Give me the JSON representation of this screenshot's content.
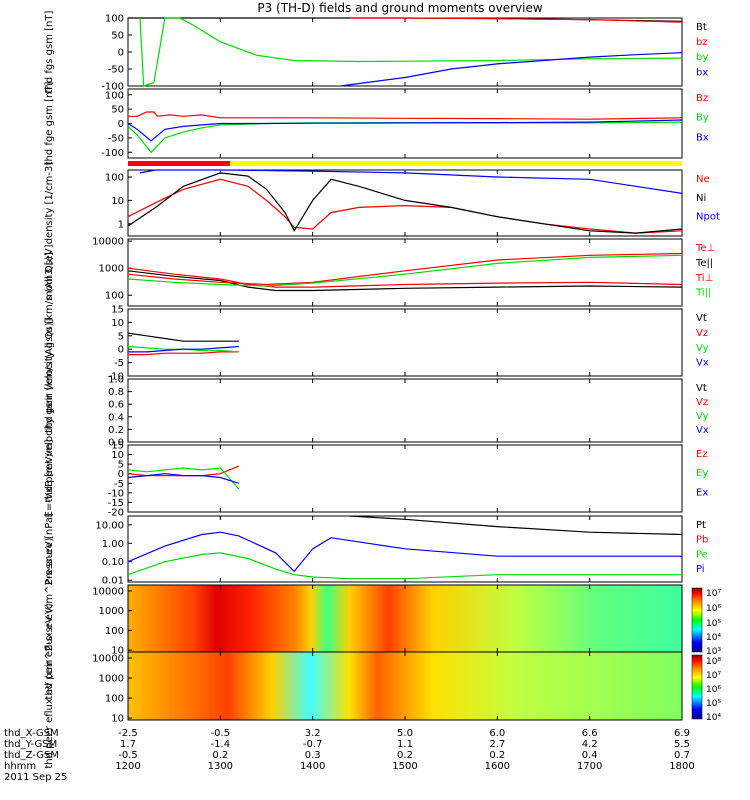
{
  "title": "P3 (TH-D) fields and ground moments overview",
  "date_label": "2011 Sep 25",
  "colors": {
    "black": "#000000",
    "red": "#ff0000",
    "green": "#00dd00",
    "blue": "#0000ff",
    "yellow": "#ffff00",
    "colorbar": [
      "#000080",
      "#0000ff",
      "#00ffff",
      "#00ff00",
      "#ffff00",
      "#ff8000",
      "#ff0000",
      "#800000"
    ]
  },
  "ephemeris": {
    "rows": [
      {
        "label": "thd_X-GSM",
        "values": [
          "-2.5",
          "-0.5",
          "3.2",
          "5.0",
          "6.0",
          "6.6",
          "6.9"
        ]
      },
      {
        "label": "thd_Y-GSM",
        "values": [
          "1.7",
          "-1.4",
          "-0.7",
          "1.1",
          "2.7",
          "4.2",
          "5.5"
        ]
      },
      {
        "label": "thd_Z-GSM",
        "values": [
          "-0.5",
          "0.2",
          "0.3",
          "0.2",
          "0.2",
          "0.4",
          "0.7"
        ]
      },
      {
        "label": "hhmm",
        "values": [
          "1200",
          "1300",
          "1400",
          "1500",
          "1600",
          "1700",
          "1800"
        ]
      }
    ]
  },
  "chart_data": [
    {
      "type": "line",
      "ylabel": "thd fgs gsm [nT]",
      "ylim": [
        -100,
        100
      ],
      "ticks": [
        "100",
        "50",
        "0",
        "-50",
        "-100"
      ],
      "legend": [
        "Bt",
        "bz",
        "by",
        "bx"
      ],
      "series": [
        {
          "name": "Bt",
          "x": [
            1200,
            1213,
            1228,
            1230,
            1233,
            1256,
            1300,
            1400,
            1500,
            1600,
            1700,
            1800
          ],
          "y": [
            100,
            100,
            100,
            100,
            100,
            100,
            100,
            100,
            100,
            98,
            95,
            90
          ]
        },
        {
          "name": "bz",
          "x": [
            1440,
            1500,
            1600,
            1700,
            1800
          ],
          "y": [
            100,
            100,
            98,
            95,
            88
          ]
        },
        {
          "name": "by",
          "x": [
            1213,
            1217,
            1228,
            1240,
            1256,
            1270,
            1300,
            1340,
            1380,
            1450,
            1500,
            1600,
            1700,
            1800
          ],
          "y": [
            100,
            -100,
            -90,
            100,
            100,
            80,
            30,
            -10,
            -25,
            -28,
            -27,
            -25,
            -20,
            -18
          ]
        },
        {
          "name": "bx",
          "x": [
            1430,
            1500,
            1550,
            1600,
            1650,
            1700,
            1750,
            1800
          ],
          "y": [
            -100,
            -75,
            -50,
            -35,
            -25,
            -15,
            -8,
            -2
          ]
        }
      ]
    },
    {
      "type": "line",
      "ylabel": "thd fge gsm [nT]",
      "ylim": [
        -120,
        120
      ],
      "ticks": [
        "100",
        "50",
        "0",
        "-50",
        "-100"
      ],
      "legend": [
        "Bz",
        "By",
        "Bx"
      ],
      "series": [
        {
          "name": "Bz",
          "x": [
            1200,
            1210,
            1220,
            1228,
            1232,
            1245,
            1260,
            1280,
            1300,
            1350,
            1400,
            1500,
            1600,
            1700,
            1800
          ],
          "y": [
            25,
            25,
            40,
            40,
            25,
            30,
            25,
            30,
            20,
            20,
            20,
            18,
            17,
            15,
            20
          ]
        },
        {
          "name": "By",
          "x": [
            1200,
            1210,
            1225,
            1240,
            1260,
            1280,
            1300,
            1350,
            1400,
            1500,
            1600,
            1700,
            1800
          ],
          "y": [
            -10,
            -40,
            -100,
            -50,
            -30,
            -15,
            -5,
            0,
            2,
            3,
            2,
            2,
            5
          ]
        },
        {
          "name": "Bx",
          "x": [
            1200,
            1210,
            1225,
            1240,
            1260,
            1280,
            1300,
            1350,
            1400,
            1500,
            1600,
            1700,
            1800
          ],
          "y": [
            0,
            -20,
            -60,
            -20,
            -10,
            -5,
            0,
            0,
            1,
            2,
            3,
            5,
            12
          ]
        }
      ]
    },
    {
      "type": "line",
      "ylabel": "density [1/cm-3]",
      "yscale": "log",
      "ylim": [
        0.3,
        200
      ],
      "ticks": [
        "100",
        "10",
        "1"
      ],
      "legend": [
        "Ne",
        "Ni",
        "Npot"
      ],
      "series": [
        {
          "name": "Ne",
          "x": [
            1200,
            1230,
            1260,
            1300,
            1330,
            1350,
            1370,
            1380,
            1400,
            1420,
            1450,
            1500,
            1550,
            1600,
            1650,
            1700,
            1750,
            1800
          ],
          "y": [
            2,
            8,
            30,
            80,
            40,
            10,
            2,
            0.7,
            0.6,
            3,
            5,
            6,
            5,
            2,
            1,
            0.6,
            0.4,
            0.5
          ]
        },
        {
          "name": "Ni",
          "x": [
            1200,
            1230,
            1260,
            1300,
            1330,
            1350,
            1370,
            1380,
            1400,
            1420,
            1450,
            1500,
            1550,
            1600,
            1650,
            1700,
            1750,
            1800
          ],
          "y": [
            0.8,
            5,
            40,
            150,
            110,
            30,
            3,
            0.5,
            10,
            80,
            40,
            10,
            5,
            2,
            1,
            0.5,
            0.4,
            0.6
          ]
        },
        {
          "name": "Npot",
          "x": [
            1213,
            1230,
            1260,
            1300,
            1400,
            1500,
            1600,
            1700,
            1750,
            1800
          ],
          "y": [
            150,
            200,
            200,
            200,
            180,
            150,
            100,
            80,
            40,
            20
          ]
        }
      ]
    },
    {
      "type": "line",
      "ylabel": "mom3 [eV]",
      "yscale": "log",
      "ylim": [
        40,
        12000
      ],
      "ticks": [
        "10000",
        "1000",
        "100"
      ],
      "legend": [
        "Te⊥",
        "Te||",
        "Ti⊥",
        "Ti||"
      ],
      "series": [
        {
          "name": "Te⊥",
          "x": [
            1200,
            1250,
            1300,
            1330,
            1360,
            1400,
            1500,
            1600,
            1700,
            1800
          ],
          "y": [
            1000,
            600,
            400,
            250,
            200,
            200,
            250,
            280,
            300,
            250
          ]
        },
        {
          "name": "Te||",
          "x": [
            1200,
            1250,
            1300,
            1330,
            1360,
            1400,
            1500,
            1600,
            1700,
            1800
          ],
          "y": [
            800,
            500,
            350,
            200,
            150,
            150,
            180,
            200,
            220,
            200
          ]
        },
        {
          "name": "Ti⊥",
          "x": [
            1200,
            1250,
            1300,
            1350,
            1400,
            1500,
            1600,
            1700,
            1800
          ],
          "y": [
            600,
            400,
            300,
            250,
            300,
            800,
            2000,
            3000,
            3500
          ]
        },
        {
          "name": "Ti||",
          "x": [
            1200,
            1250,
            1300,
            1350,
            1400,
            1500,
            1600,
            1700,
            1800
          ],
          "y": [
            400,
            300,
            250,
            220,
            280,
            600,
            1500,
            2500,
            3000
          ]
        }
      ]
    },
    {
      "type": "line",
      "ylabel": "thd peir velocity gsm [km/s (All Qs)]",
      "ylim": [
        -10,
        15
      ],
      "ticks": [
        "15",
        "10",
        "5",
        "0",
        "-5",
        "-10"
      ],
      "legend": [
        "Vt",
        "Vz",
        "Vy",
        "Vx"
      ],
      "series": [
        {
          "name": "Vt",
          "x": [
            1200,
            1220,
            1240,
            1260,
            1280,
            1300,
            1320
          ],
          "y": [
            6,
            5,
            4,
            3,
            3,
            3,
            3
          ]
        },
        {
          "name": "Vz",
          "x": [
            1200,
            1220,
            1240,
            1260,
            1280,
            1300,
            1320
          ],
          "y": [
            -2,
            -2,
            -1.5,
            -1.5,
            -1.5,
            -1,
            -1
          ]
        },
        {
          "name": "Vy",
          "x": [
            1200,
            1220,
            1240,
            1260,
            1280,
            1300,
            1320
          ],
          "y": [
            1,
            0.5,
            0,
            0,
            -0.5,
            -0.5,
            -1
          ]
        },
        {
          "name": "Vx",
          "x": [
            1200,
            1220,
            1240,
            1260,
            1280,
            1300,
            1320
          ],
          "y": [
            -1,
            -1,
            -0.5,
            0,
            0,
            0.5,
            1
          ]
        }
      ]
    },
    {
      "type": "line",
      "ylabel": "thd peer velocity gsm [km/s (All Qs)]",
      "ylim": [
        0,
        1
      ],
      "ticks": [
        "1.0",
        "0.8",
        "0.6",
        "0.4",
        "0.2",
        "0.0"
      ],
      "legend": [
        "Vt",
        "Vz",
        "Vy",
        "Vx"
      ],
      "series": []
    },
    {
      "type": "line",
      "ylabel": "E=-VxB [mV/m]",
      "ylim": [
        -20,
        15
      ],
      "ticks": [
        "15",
        "10",
        "5",
        "0",
        "-5",
        "-10",
        "-15",
        "-20"
      ],
      "legend": [
        "Ez",
        "Ey",
        "Ex"
      ],
      "series": [
        {
          "name": "Ez",
          "x": [
            1200,
            1220,
            1240,
            1260,
            1280,
            1300,
            1320
          ],
          "y": [
            0,
            -1,
            -1,
            -1,
            -1,
            0,
            4
          ]
        },
        {
          "name": "Ey",
          "x": [
            1200,
            1220,
            1240,
            1260,
            1280,
            1300,
            1320
          ],
          "y": [
            2,
            1,
            2,
            3,
            2,
            3,
            -8
          ]
        },
        {
          "name": "Ex",
          "x": [
            1200,
            1220,
            1240,
            1260,
            1280,
            1300,
            1320
          ],
          "y": [
            -2,
            -1,
            0,
            -1,
            -1,
            -2,
            -5
          ]
        }
      ]
    },
    {
      "type": "line",
      "ylabel": "Pressure [nPa]",
      "yscale": "log",
      "ylim": [
        0.008,
        30
      ],
      "ticks": [
        "10.00",
        "1.00",
        "0.10",
        "0.01"
      ],
      "legend": [
        "Pt",
        "Pb",
        "Pe",
        "Pi"
      ],
      "series": [
        {
          "name": "Pt",
          "x": [
            1440,
            1500,
            1600,
            1700,
            1800
          ],
          "y": [
            30,
            20,
            8,
            4,
            3
          ]
        },
        {
          "name": "Pi",
          "x": [
            1200,
            1240,
            1280,
            1300,
            1320,
            1360,
            1380,
            1400,
            1420,
            1460,
            1500,
            1600,
            1700,
            1800
          ],
          "y": [
            0.1,
            0.7,
            3,
            4,
            2.5,
            0.3,
            0.03,
            0.5,
            2,
            1,
            0.5,
            0.2,
            0.2,
            0.2
          ]
        },
        {
          "name": "Pe",
          "x": [
            1200,
            1240,
            1280,
            1300,
            1330,
            1360,
            1380,
            1400,
            1440,
            1500,
            1600,
            1700,
            1800
          ],
          "y": [
            0.02,
            0.1,
            0.25,
            0.3,
            0.15,
            0.04,
            0.02,
            0.015,
            0.012,
            0.012,
            0.02,
            0.02,
            0.02
          ]
        }
      ]
    },
    {
      "type": "heatmap",
      "ylabel": "thd peir eflux eV (cm^2-s-sr-eV)",
      "yscale": "log",
      "ylim": [
        8,
        20000
      ],
      "ticks": [
        "10000",
        "1000",
        "100",
        "10"
      ],
      "colorbar_ticks": [
        "10⁷",
        "10⁶",
        "10⁵",
        "10⁴",
        "10³"
      ]
    },
    {
      "type": "heatmap",
      "ylabel": "thd peer eflux eV (cm^2-s-sr-eV)",
      "yscale": "log",
      "ylim": [
        8,
        20000
      ],
      "ticks": [
        "10000",
        "1000",
        "100",
        "10"
      ],
      "colorbar_ticks": [
        "10⁸",
        "10⁷",
        "10⁶",
        "10⁵",
        "10⁴"
      ]
    }
  ]
}
